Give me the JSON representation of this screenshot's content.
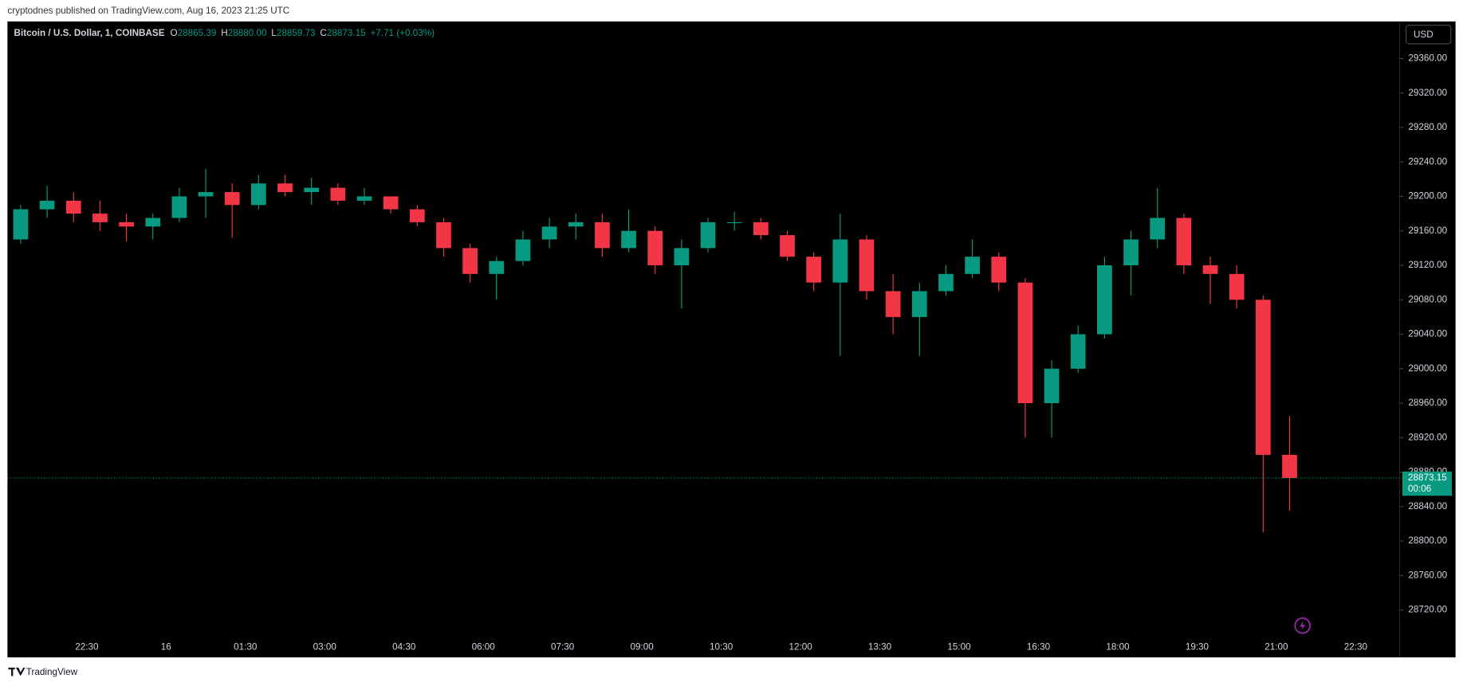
{
  "chart_data": {
    "type": "candlestick",
    "caption": "cryptodnes published on TradingView.com, Aug 16, 2023 21:25 UTC",
    "title": "Bitcoin / U.S. Dollar, 1, COINBASE",
    "ohlc_header": {
      "open_label": "O",
      "open": "28865.39",
      "high_label": "H",
      "high": "28880.00",
      "low_label": "L",
      "low": "28859.73",
      "close_label": "C",
      "close": "28873.15",
      "change": "+7.71 (+0.03%)"
    },
    "currency": "USD",
    "brand": "TradingView",
    "last_price_label": "28873.15",
    "countdown": "00:06",
    "categories": [
      null,
      null,
      null,
      "22:30",
      null,
      null,
      "16",
      null,
      null,
      "01:30",
      null,
      null,
      "03:00",
      null,
      null,
      "04:30",
      null,
      null,
      "06:00",
      null,
      null,
      "07:30",
      null,
      null,
      "09:00",
      null,
      null,
      "10:30",
      null,
      null,
      "12:00",
      null,
      null,
      "13:30",
      null,
      null,
      "15:00",
      null,
      null,
      "16:30",
      null,
      null,
      "18:00",
      null,
      null,
      "19:30",
      null,
      null,
      "21:00",
      null,
      null,
      "22:30"
    ],
    "open": [
      29150,
      29185,
      29195,
      29180,
      29170,
      29165,
      29175,
      29200,
      29205,
      29190,
      29215,
      29205,
      29210,
      29195,
      29200,
      29185,
      29170,
      29140,
      29110,
      29125,
      29150,
      29165,
      29170,
      29140,
      29160,
      29120,
      29140,
      29170,
      29170,
      29155,
      29130,
      29100,
      29150,
      29090,
      29060,
      29090,
      29110,
      29130,
      29100,
      28960,
      29000,
      29040,
      29120,
      29150,
      29175,
      29120,
      29110,
      29080,
      28900,
      null,
      null,
      null
    ],
    "high": [
      29190,
      29212,
      29205,
      29195,
      29180,
      29180,
      29210,
      29232,
      29215,
      29225,
      29225,
      29222,
      29215,
      29210,
      29200,
      29190,
      29175,
      29145,
      29130,
      29160,
      29175,
      29180,
      29180,
      29185,
      29165,
      29150,
      29175,
      29182,
      29175,
      29160,
      29135,
      29180,
      29155,
      29110,
      29100,
      29120,
      29150,
      29135,
      29105,
      29010,
      29050,
      29130,
      29160,
      29210,
      29180,
      29130,
      29120,
      29085,
      28945,
      null,
      null,
      null
    ],
    "low": [
      29145,
      29175,
      29170,
      29160,
      29148,
      29150,
      29170,
      29175,
      29152,
      29185,
      29200,
      29190,
      29190,
      29190,
      29180,
      29165,
      29130,
      29100,
      29080,
      29120,
      29140,
      29150,
      29130,
      29135,
      29110,
      29070,
      29135,
      29160,
      29150,
      29125,
      29090,
      29015,
      29080,
      29040,
      29015,
      29085,
      29105,
      29090,
      28920,
      28920,
      28995,
      29035,
      29085,
      29140,
      29110,
      29075,
      29070,
      28810,
      28835,
      null,
      null,
      null
    ],
    "close": [
      29185,
      29195,
      29180,
      29170,
      29165,
      29175,
      29200,
      29205,
      29190,
      29215,
      29205,
      29210,
      29195,
      29200,
      29185,
      29170,
      29140,
      29110,
      29125,
      29150,
      29165,
      29170,
      29140,
      29160,
      29120,
      29140,
      29170,
      29170,
      29155,
      29130,
      29100,
      29150,
      29090,
      29060,
      29090,
      29110,
      29130,
      29100,
      28960,
      29000,
      29040,
      29120,
      29150,
      29175,
      29120,
      29110,
      29080,
      28900,
      28873.15,
      null,
      null,
      null
    ],
    "up_color": "#089981",
    "down_color": "#f23645",
    "ylim": [
      28665,
      29403
    ],
    "yticks": [
      {
        "value": 28720,
        "label": "28720.00"
      },
      {
        "value": 28760,
        "label": "28760.00"
      },
      {
        "value": 28800,
        "label": "28800.00"
      },
      {
        "value": 28840,
        "label": "28840.00"
      },
      {
        "value": 28880,
        "label": "28880.00"
      },
      {
        "value": 28920,
        "label": "28920.00"
      },
      {
        "value": 28960,
        "label": "28960.00"
      },
      {
        "value": 29000,
        "label": "29000.00"
      },
      {
        "value": 29040,
        "label": "29040.00"
      },
      {
        "value": 29080,
        "label": "29080.00"
      },
      {
        "value": 29120,
        "label": "29120.00"
      },
      {
        "value": 29160,
        "label": "29160.00"
      },
      {
        "value": 29200,
        "label": "29200.00"
      },
      {
        "value": 29240,
        "label": "29240.00"
      },
      {
        "value": 29280,
        "label": "29280.00"
      },
      {
        "value": 29320,
        "label": "29320.00"
      },
      {
        "value": 29360,
        "label": "29360.00"
      }
    ]
  }
}
